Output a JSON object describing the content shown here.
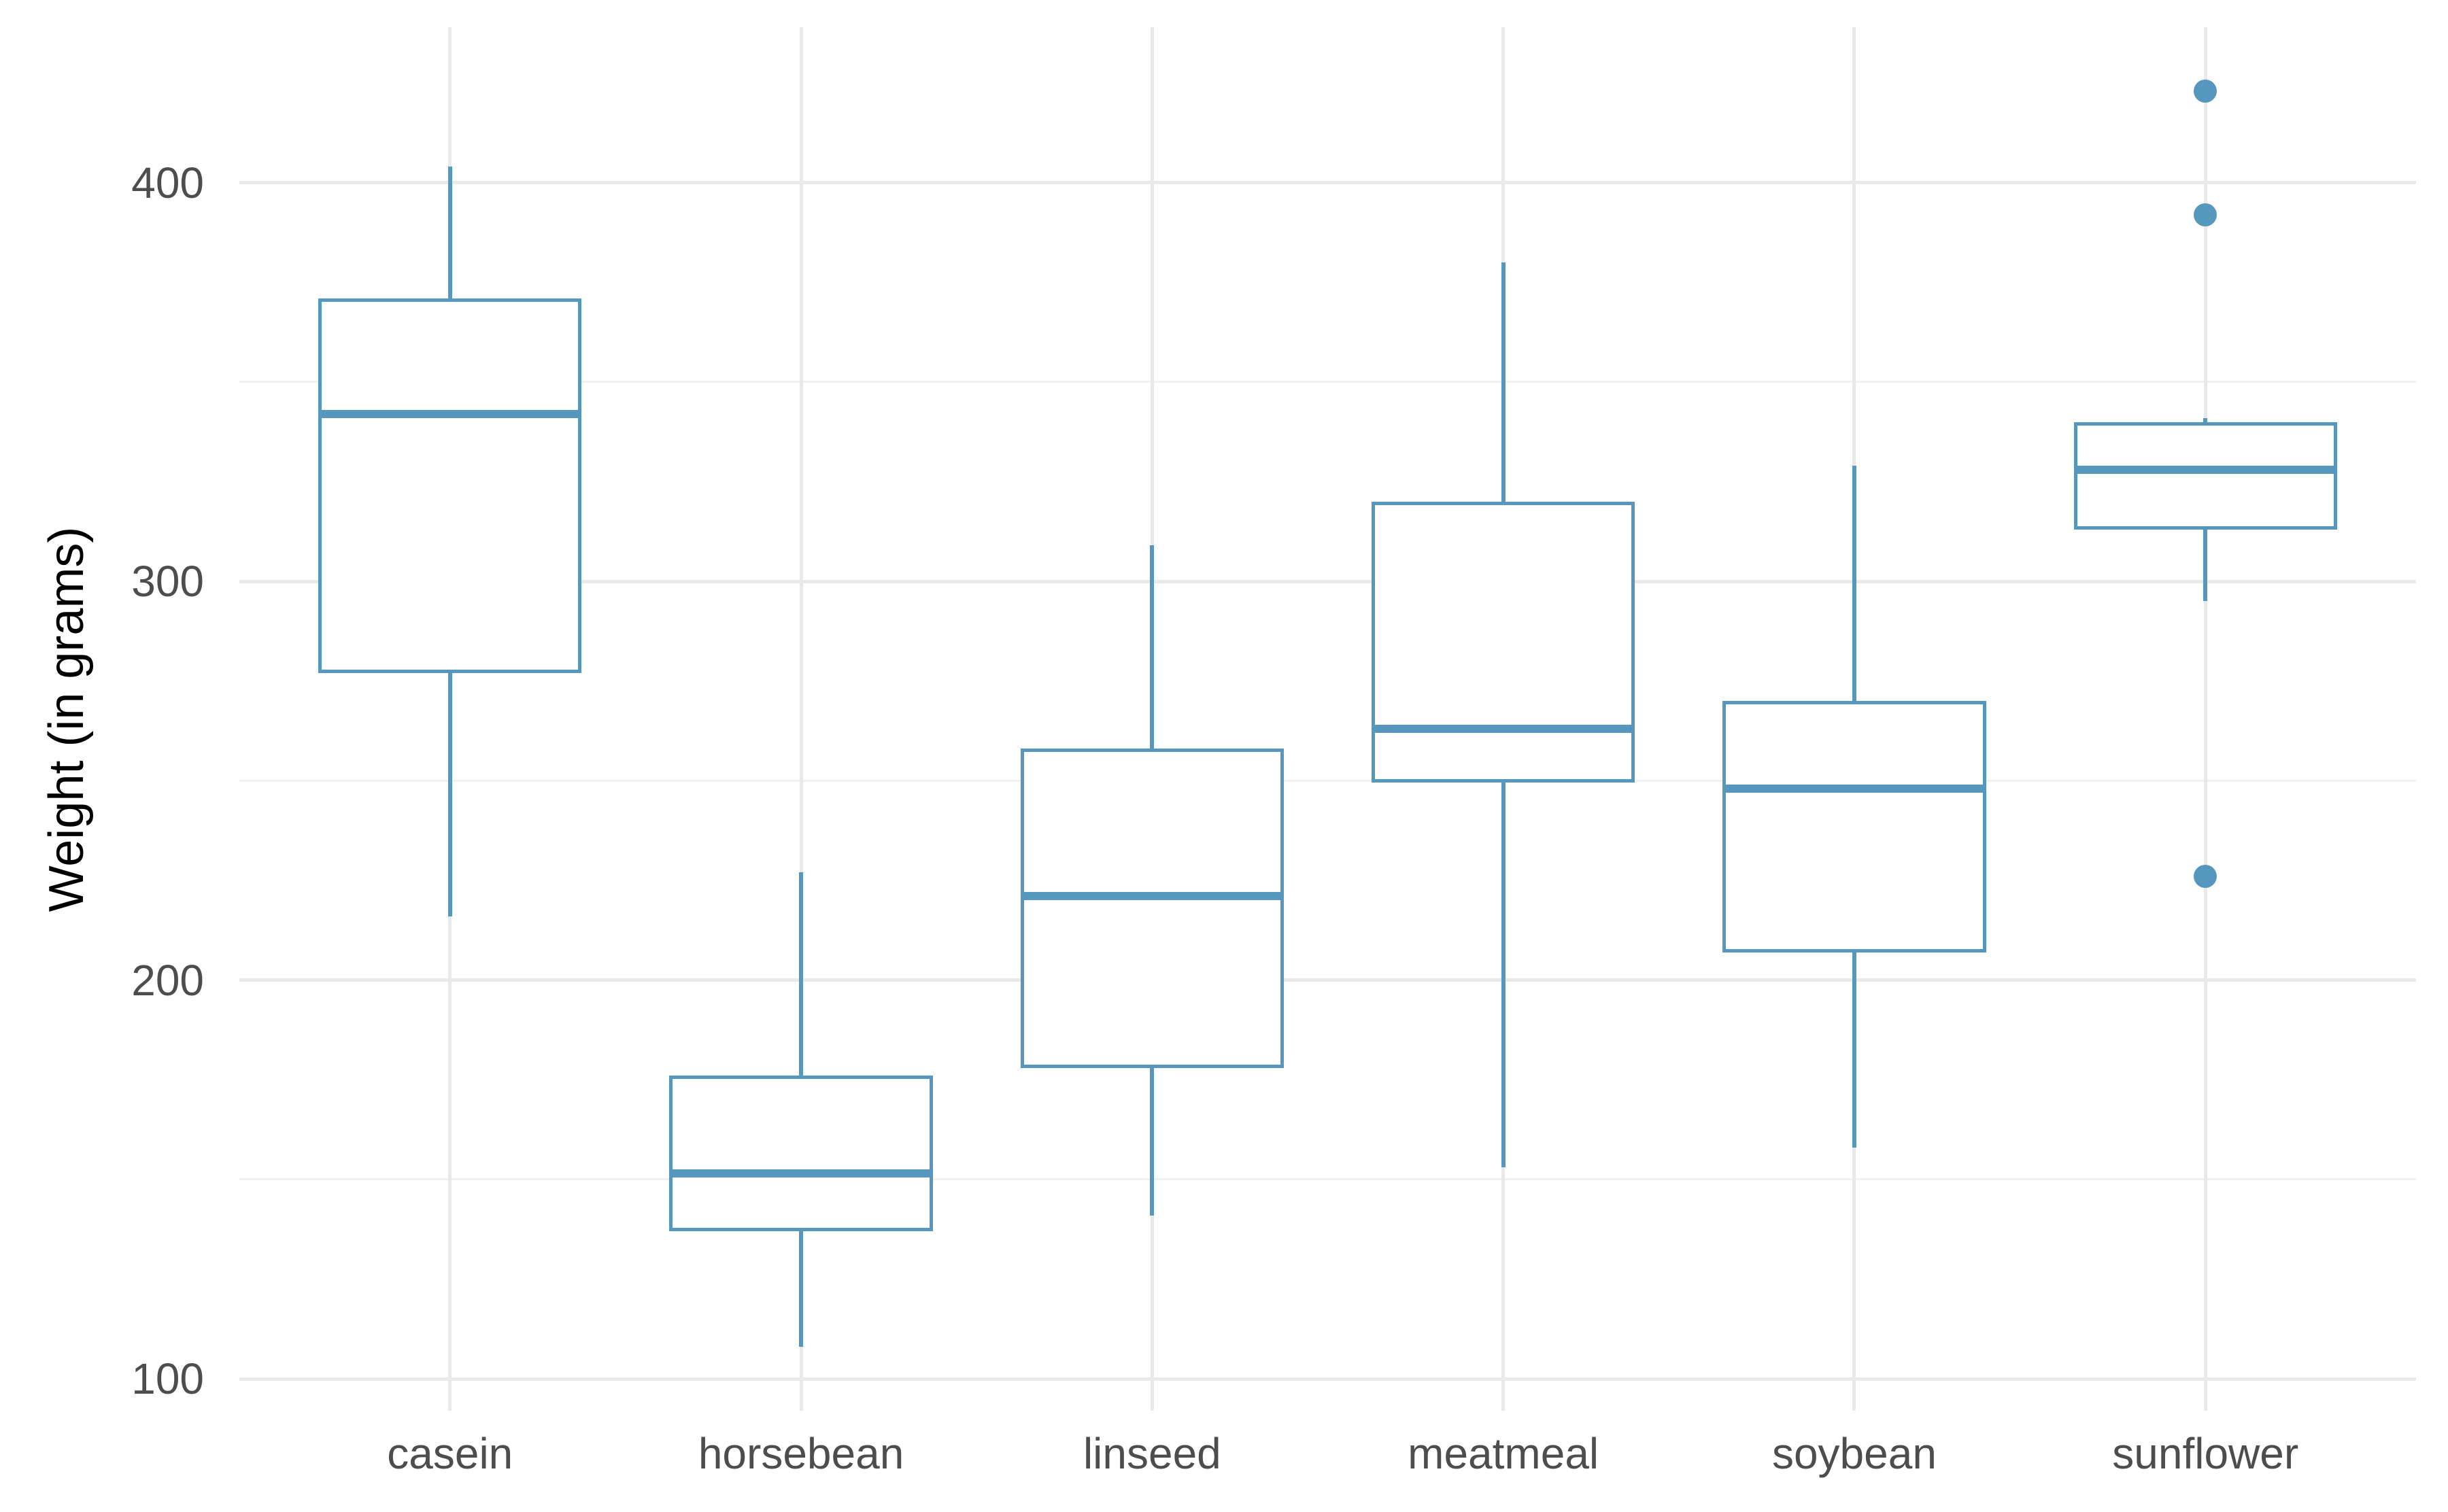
{
  "chart_data": {
    "type": "box",
    "title": "",
    "xlabel": "",
    "ylabel": "Weight (in grams)",
    "legend": "none",
    "grid": "on",
    "categories": [
      "casein",
      "horsebean",
      "linseed",
      "meatmeal",
      "soybean",
      "sunflower"
    ],
    "y_axis": {
      "tick_labels": [
        "100",
        "200",
        "300",
        "400"
      ],
      "tick_values": [
        100,
        200,
        300,
        400
      ],
      "minor_tick_values": [
        150,
        250,
        350
      ],
      "ylim": [
        92,
        439
      ]
    },
    "boxes": [
      {
        "category": "casein",
        "whisker_low": 216,
        "q1": 277,
        "median": 342,
        "q3": 371,
        "whisker_high": 404,
        "outliers": []
      },
      {
        "category": "horsebean",
        "whisker_low": 108,
        "q1": 137,
        "median": 151.5,
        "q3": 176,
        "whisker_high": 227,
        "outliers": []
      },
      {
        "category": "linseed",
        "whisker_low": 141,
        "q1": 178,
        "median": 221,
        "q3": 258,
        "whisker_high": 309,
        "outliers": []
      },
      {
        "category": "meatmeal",
        "whisker_low": 153,
        "q1": 249.5,
        "median": 263,
        "q3": 320,
        "whisker_high": 380,
        "outliers": []
      },
      {
        "category": "soybean",
        "whisker_low": 158,
        "q1": 207,
        "median": 248,
        "q3": 270,
        "whisker_high": 329,
        "outliers": []
      },
      {
        "category": "sunflower",
        "whisker_low": 295,
        "q1": 313,
        "median": 328,
        "q3": 340,
        "whisker_high": 341,
        "outliers": [
          226,
          392,
          423
        ]
      }
    ],
    "colors": {
      "box_stroke": "#5697BD",
      "median": "#5697BD",
      "outlier_fill": "#5697BD",
      "grid_major": "#E9E9E9",
      "grid_minor": "#F1F1F1",
      "tick_text": "#4D4D4D",
      "axis_title_text": "#000000",
      "background": "#FFFFFF"
    }
  }
}
